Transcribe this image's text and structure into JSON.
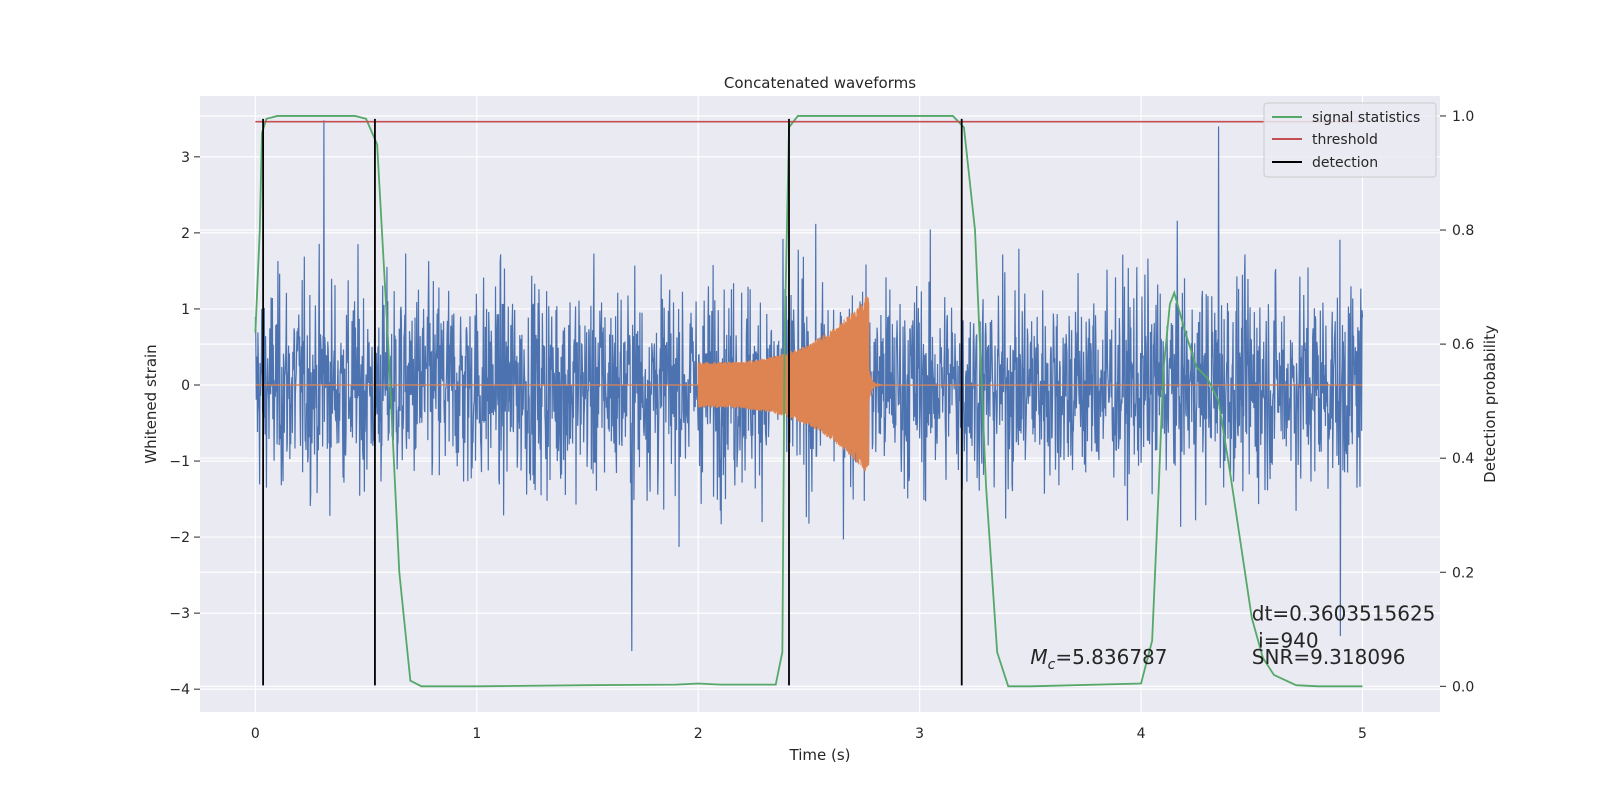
{
  "chart_data": {
    "type": "line",
    "title": "Concatenated waveforms",
    "xlabel": "Time (s)",
    "ylabel": "Whitened strain",
    "y2label": "Detection probability",
    "xlim": [
      -0.25,
      5.35
    ],
    "ylim": [
      -4.3,
      3.8
    ],
    "y2lim": [
      -0.045,
      1.035
    ],
    "grid": true,
    "legend_position": "top-right",
    "x_ticks": [
      0,
      1,
      2,
      3,
      4,
      5
    ],
    "x_tick_labels": [
      "0",
      "1",
      "2",
      "3",
      "4",
      "5"
    ],
    "y_ticks": [
      -4,
      -3,
      -2,
      -1,
      0,
      1,
      2,
      3
    ],
    "y_tick_labels": [
      "−4",
      "−3",
      "−2",
      "−1",
      "0",
      "1",
      "2",
      "3"
    ],
    "y2_ticks": [
      0.0,
      0.2,
      0.4,
      0.6,
      0.8,
      1.0
    ],
    "y2_tick_labels": [
      "0.0",
      "0.2",
      "0.4",
      "0.6",
      "0.8",
      "1.0"
    ],
    "noise": {
      "x_range": [
        0,
        5
      ],
      "typical_peak_range": [
        -2.5,
        2.5
      ],
      "extremes": [
        {
          "x": 0.31,
          "y": 3.48
        },
        {
          "x": 1.7,
          "y": -3.5
        },
        {
          "x": 4.35,
          "y": 3.4
        },
        {
          "x": 4.9,
          "y": -3.3
        }
      ],
      "color": "#4c72b0"
    },
    "signal": {
      "x_range": [
        2.0,
        2.77
      ],
      "start_amplitude": 0.3,
      "peak_amplitude": 1.2,
      "color": "#dd8452"
    },
    "series": [
      {
        "name": "signal statistics",
        "axis": "right",
        "color": "#55a868",
        "x": [
          0.0,
          0.02,
          0.03,
          0.05,
          0.1,
          0.45,
          0.5,
          0.55,
          0.6,
          0.65,
          0.7,
          0.75,
          1.0,
          1.5,
          1.9,
          2.0,
          2.1,
          2.35,
          2.38,
          2.39,
          2.41,
          2.45,
          3.15,
          3.2,
          3.25,
          3.3,
          3.35,
          3.4,
          3.5,
          4.0,
          4.05,
          4.08,
          4.1,
          4.13,
          4.15,
          4.2,
          4.25,
          4.3,
          4.35,
          4.4,
          4.45,
          4.5,
          4.55,
          4.6,
          4.7,
          4.8,
          5.0
        ],
        "y": [
          0.62,
          0.8,
          0.97,
          0.995,
          1.0,
          1.0,
          0.995,
          0.95,
          0.6,
          0.2,
          0.01,
          0.0,
          0.0,
          0.002,
          0.003,
          0.005,
          0.003,
          0.003,
          0.06,
          0.6,
          0.98,
          1.0,
          1.0,
          0.98,
          0.8,
          0.35,
          0.06,
          0.0,
          0.0,
          0.005,
          0.08,
          0.35,
          0.55,
          0.67,
          0.69,
          0.62,
          0.56,
          0.54,
          0.5,
          0.38,
          0.25,
          0.12,
          0.05,
          0.02,
          0.002,
          0.0,
          0.0
        ]
      },
      {
        "name": "threshold",
        "axis": "right",
        "color": "#c44e52",
        "x": [
          0.0,
          5.0
        ],
        "y": [
          0.99,
          0.99
        ]
      },
      {
        "name": "detection",
        "axis": "left",
        "color": "#000000",
        "x_positions": [
          0.035,
          0.54,
          2.41,
          3.19
        ],
        "y_range": [
          -3.95,
          3.5
        ]
      }
    ],
    "annotations": [
      {
        "text": "dt=0.3603515625",
        "x": 4.5,
        "y": -3.1
      },
      {
        "text": " i=940",
        "x": 4.5,
        "y": -3.45
      },
      {
        "text": "SNR=9.318096",
        "x": 4.5,
        "y": -3.67
      },
      {
        "text_main": "M",
        "text_sub": "c",
        "text_rest": "=5.836787",
        "x": 3.5,
        "y": -3.67
      }
    ]
  }
}
